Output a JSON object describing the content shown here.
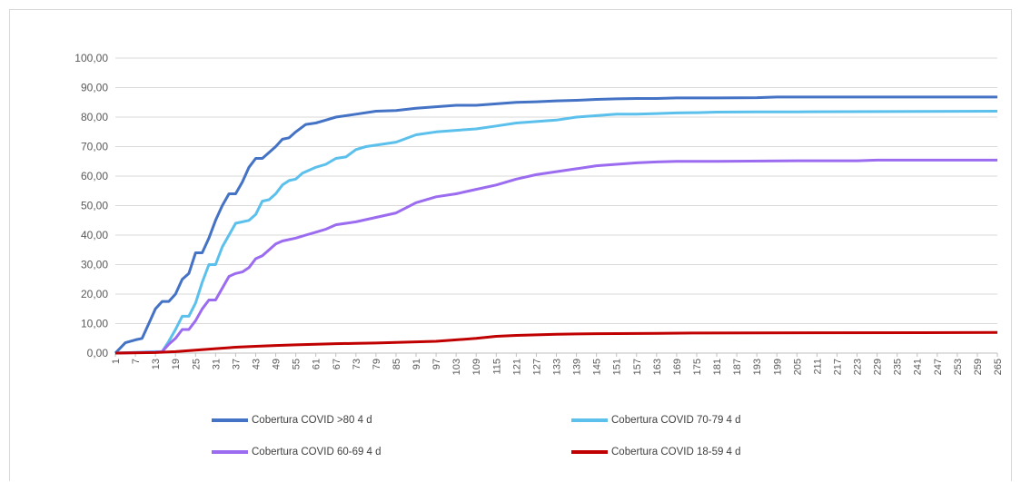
{
  "chart_data": {
    "type": "line",
    "title": "",
    "xlabel": "",
    "ylabel": "",
    "ylim": [
      0,
      100
    ],
    "yticks": [
      "0,00",
      "10,00",
      "20,00",
      "30,00",
      "40,00",
      "50,00",
      "60,00",
      "70,00",
      "80,00",
      "90,00",
      "100,00"
    ],
    "xlim": [
      1,
      265
    ],
    "xticks": [
      1,
      7,
      13,
      19,
      25,
      31,
      37,
      43,
      49,
      55,
      61,
      67,
      73,
      79,
      85,
      91,
      97,
      103,
      109,
      115,
      121,
      127,
      133,
      139,
      145,
      151,
      157,
      163,
      169,
      175,
      181,
      187,
      193,
      199,
      205,
      211,
      217,
      223,
      229,
      235,
      241,
      247,
      253,
      259,
      265
    ],
    "grid": true,
    "legend_position": "bottom",
    "series": [
      {
        "name": "Cobertura COVID >80 4 d",
        "color": "#4472c4",
        "points": [
          [
            1,
            0
          ],
          [
            4,
            3.5
          ],
          [
            7,
            4.5
          ],
          [
            9,
            5
          ],
          [
            11,
            10
          ],
          [
            13,
            15
          ],
          [
            15,
            17.5
          ],
          [
            17,
            17.5
          ],
          [
            19,
            20
          ],
          [
            21,
            25
          ],
          [
            23,
            27
          ],
          [
            25,
            34
          ],
          [
            27,
            34
          ],
          [
            29,
            39
          ],
          [
            31,
            45
          ],
          [
            33,
            50
          ],
          [
            35,
            54
          ],
          [
            37,
            54
          ],
          [
            39,
            58
          ],
          [
            41,
            63
          ],
          [
            43,
            66
          ],
          [
            45,
            66
          ],
          [
            47,
            68
          ],
          [
            49,
            70
          ],
          [
            51,
            72.5
          ],
          [
            53,
            73
          ],
          [
            55,
            75
          ],
          [
            58,
            77.5
          ],
          [
            61,
            78
          ],
          [
            64,
            79
          ],
          [
            67,
            80
          ],
          [
            73,
            81
          ],
          [
            79,
            82
          ],
          [
            85,
            82.2
          ],
          [
            91,
            83
          ],
          [
            97,
            83.5
          ],
          [
            103,
            84
          ],
          [
            109,
            84
          ],
          [
            115,
            84.5
          ],
          [
            121,
            85
          ],
          [
            127,
            85.2
          ],
          [
            133,
            85.5
          ],
          [
            139,
            85.7
          ],
          [
            145,
            86
          ],
          [
            151,
            86.2
          ],
          [
            157,
            86.3
          ],
          [
            163,
            86.3
          ],
          [
            169,
            86.5
          ],
          [
            181,
            86.5
          ],
          [
            193,
            86.6
          ],
          [
            199,
            86.8
          ],
          [
            265,
            86.8
          ]
        ]
      },
      {
        "name": "Cobertura COVID 70-79 4 d",
        "color": "#5bc0eb",
        "points": [
          [
            1,
            0
          ],
          [
            13,
            0.5
          ],
          [
            15,
            0.5
          ],
          [
            17,
            4
          ],
          [
            19,
            8
          ],
          [
            21,
            12.5
          ],
          [
            23,
            12.5
          ],
          [
            25,
            17
          ],
          [
            27,
            24
          ],
          [
            29,
            30
          ],
          [
            31,
            30
          ],
          [
            33,
            36
          ],
          [
            35,
            40
          ],
          [
            37,
            44
          ],
          [
            39,
            44.5
          ],
          [
            41,
            45
          ],
          [
            43,
            47
          ],
          [
            45,
            51.5
          ],
          [
            47,
            52
          ],
          [
            49,
            54
          ],
          [
            51,
            57
          ],
          [
            53,
            58.5
          ],
          [
            55,
            59
          ],
          [
            57,
            61
          ],
          [
            61,
            63
          ],
          [
            64,
            64
          ],
          [
            67,
            66
          ],
          [
            70,
            66.5
          ],
          [
            73,
            69
          ],
          [
            76,
            70
          ],
          [
            79,
            70.5
          ],
          [
            85,
            71.5
          ],
          [
            91,
            74
          ],
          [
            97,
            75
          ],
          [
            103,
            75.5
          ],
          [
            109,
            76
          ],
          [
            115,
            77
          ],
          [
            121,
            78
          ],
          [
            127,
            78.5
          ],
          [
            133,
            79
          ],
          [
            139,
            80
          ],
          [
            145,
            80.5
          ],
          [
            151,
            81
          ],
          [
            157,
            81
          ],
          [
            163,
            81.2
          ],
          [
            169,
            81.4
          ],
          [
            175,
            81.5
          ],
          [
            181,
            81.7
          ],
          [
            193,
            81.8
          ],
          [
            205,
            81.8
          ],
          [
            265,
            82
          ]
        ]
      },
      {
        "name": "Cobertura COVID 60-69 4 d",
        "color": "#9b6bf0",
        "points": [
          [
            1,
            0
          ],
          [
            13,
            0.3
          ],
          [
            15,
            0.5
          ],
          [
            17,
            3
          ],
          [
            19,
            5
          ],
          [
            21,
            8
          ],
          [
            23,
            8
          ],
          [
            25,
            11
          ],
          [
            27,
            15
          ],
          [
            29,
            18
          ],
          [
            31,
            18
          ],
          [
            33,
            22
          ],
          [
            35,
            26
          ],
          [
            37,
            27
          ],
          [
            39,
            27.5
          ],
          [
            41,
            29
          ],
          [
            43,
            32
          ],
          [
            45,
            33
          ],
          [
            47,
            35
          ],
          [
            49,
            37
          ],
          [
            51,
            38
          ],
          [
            55,
            39
          ],
          [
            58,
            40
          ],
          [
            61,
            41
          ],
          [
            64,
            42
          ],
          [
            67,
            43.5
          ],
          [
            73,
            44.5
          ],
          [
            79,
            46
          ],
          [
            85,
            47.5
          ],
          [
            91,
            51
          ],
          [
            97,
            53
          ],
          [
            103,
            54
          ],
          [
            109,
            55.5
          ],
          [
            115,
            57
          ],
          [
            121,
            59
          ],
          [
            127,
            60.5
          ],
          [
            133,
            61.5
          ],
          [
            139,
            62.5
          ],
          [
            145,
            63.5
          ],
          [
            151,
            64
          ],
          [
            157,
            64.5
          ],
          [
            163,
            64.8
          ],
          [
            169,
            65
          ],
          [
            181,
            65
          ],
          [
            205,
            65.2
          ],
          [
            223,
            65.2
          ],
          [
            229,
            65.4
          ],
          [
            265,
            65.4
          ]
        ]
      },
      {
        "name": "Cobertura COVID 18-59 4 d",
        "color": "#c00000",
        "points": [
          [
            1,
            0
          ],
          [
            13,
            0.2
          ],
          [
            19,
            0.5
          ],
          [
            25,
            1
          ],
          [
            31,
            1.5
          ],
          [
            37,
            2
          ],
          [
            43,
            2.3
          ],
          [
            49,
            2.6
          ],
          [
            55,
            2.8
          ],
          [
            61,
            3
          ],
          [
            67,
            3.2
          ],
          [
            73,
            3.3
          ],
          [
            79,
            3.4
          ],
          [
            85,
            3.6
          ],
          [
            91,
            3.8
          ],
          [
            97,
            4
          ],
          [
            103,
            4.5
          ],
          [
            109,
            5
          ],
          [
            115,
            5.7
          ],
          [
            121,
            6
          ],
          [
            127,
            6.2
          ],
          [
            133,
            6.4
          ],
          [
            139,
            6.5
          ],
          [
            145,
            6.6
          ],
          [
            163,
            6.7
          ],
          [
            175,
            6.8
          ],
          [
            265,
            7
          ]
        ]
      }
    ]
  }
}
